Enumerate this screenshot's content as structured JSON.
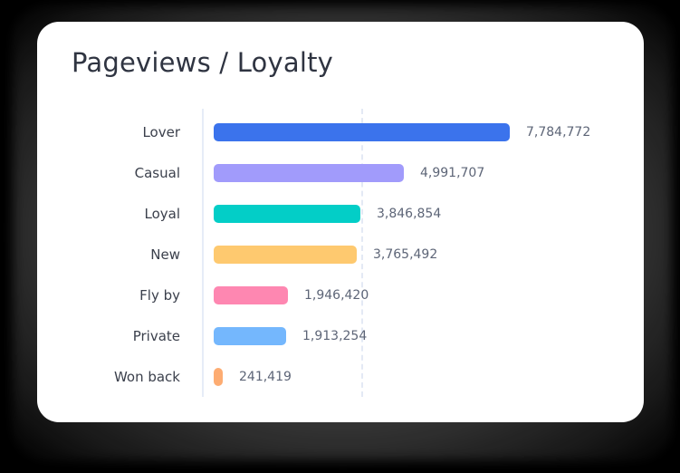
{
  "card": {
    "title": "Pageviews / Loyalty"
  },
  "chart_data": {
    "type": "bar",
    "orientation": "horizontal",
    "title": "Pageviews / Loyalty",
    "xlabel": "",
    "ylabel": "",
    "grid": "single dashed vertical reference line",
    "legend": "none",
    "categories": [
      "Lover",
      "Casual",
      "Loyal",
      "New",
      "Fly by",
      "Private",
      "Won back"
    ],
    "values": [
      7784772,
      4991707,
      3846854,
      3765492,
      1946420,
      1913254,
      241419
    ],
    "value_labels": [
      "7,784,772",
      "4,991,707",
      "3,846,854",
      "3,765,492",
      "1,946,420",
      "1,913,254",
      "241,419"
    ],
    "colors": [
      "#3b73ec",
      "#a19bfb",
      "#03cec7",
      "#fec96f",
      "#fe87b1",
      "#74b7fd",
      "#fdac72"
    ]
  }
}
